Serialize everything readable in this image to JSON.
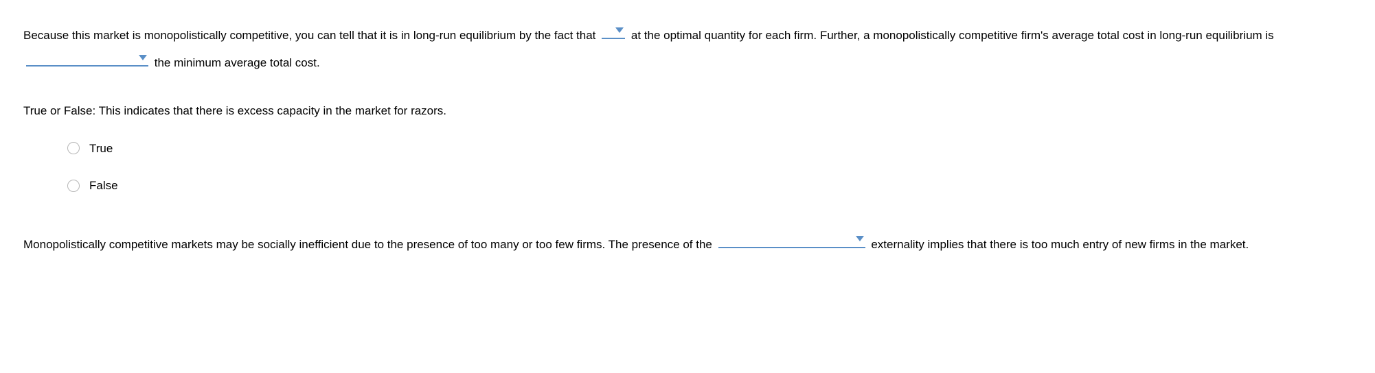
{
  "para1": {
    "t1": "Because this market is monopolistically competitive, you can tell that it is in long-run equilibrium by the fact that",
    "t2": "at the optimal quantity for each firm. Further, a monopolistically competitive firm's average total cost in long-run equilibrium is",
    "t3": "the minimum average total cost."
  },
  "question": "True or False: This indicates that there is excess capacity in the market for razors.",
  "options": {
    "true": "True",
    "false": "False"
  },
  "para3": {
    "t1": "Monopolistically competitive markets may be socially inefficient due to the presence of too many or too few firms. The presence of the",
    "t2": "externality implies that there is too much entry of new firms in the market."
  },
  "dropdown_values": {
    "d1": "",
    "d2": "",
    "d3": ""
  },
  "colors": {
    "underline": "#5a8fc7",
    "arrow": "#5a8fc7",
    "radio_border": "#b6b6b6",
    "text": "#000"
  }
}
